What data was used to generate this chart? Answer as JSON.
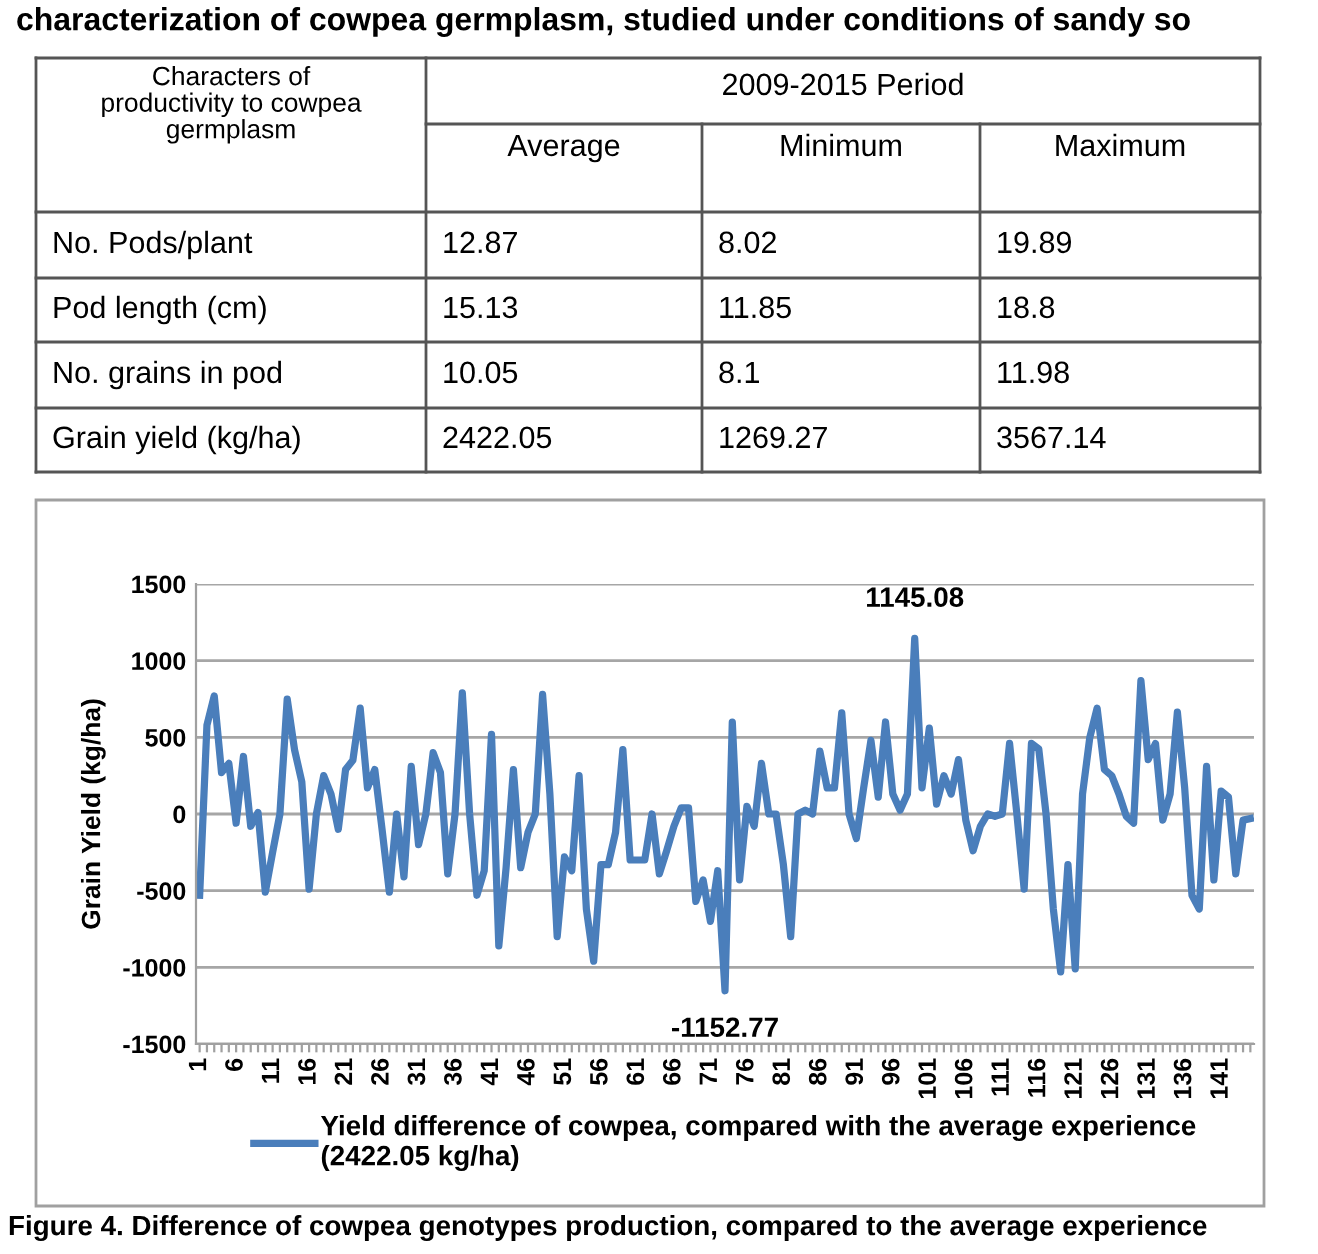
{
  "chart_data": [
    {
      "type": "other",
      "title": "characterization of cowpea germplasm, studied under conditions of sandy so",
      "annotations": [
        "Characters of\nproductivity to cowpea\ngermplasm",
        "2009-2015 Period",
        "Average",
        "Minimum",
        "Maximum",
        "No. Pods/plant",
        "12.87",
        "8.02",
        "19.89",
        "Pod length (cm)",
        "15.13",
        "11.85",
        "18.8",
        "No. grains in pod",
        "10.05",
        "8.1",
        "11.98",
        "Grain yield (kg/ha)",
        "2422.05",
        "1269.27",
        "3567.14"
      ]
    },
    {
      "type": "line",
      "ylabel": "Grain Yield (kg/ha)",
      "ylim": [
        -1500,
        1500
      ],
      "yticks": [
        -1500,
        -1000,
        -500,
        0,
        500,
        1000,
        1500
      ],
      "grid": "y",
      "legend": "bottom",
      "marker": "none",
      "line_style": "solid",
      "categories": [
        "1",
        null,
        null,
        null,
        null,
        "6",
        null,
        null,
        null,
        null,
        "11",
        null,
        null,
        null,
        null,
        "16",
        null,
        null,
        null,
        null,
        "21",
        null,
        null,
        null,
        null,
        "26",
        null,
        null,
        null,
        null,
        "31",
        null,
        null,
        null,
        null,
        "36",
        null,
        null,
        null,
        null,
        "41",
        null,
        null,
        null,
        null,
        "46",
        null,
        null,
        null,
        null,
        "51",
        null,
        null,
        null,
        null,
        "56",
        null,
        null,
        null,
        null,
        "61",
        null,
        null,
        null,
        null,
        "66",
        null,
        null,
        null,
        null,
        "71",
        null,
        null,
        null,
        null,
        "76",
        null,
        null,
        null,
        null,
        "81",
        null,
        null,
        null,
        null,
        "86",
        null,
        null,
        null,
        null,
        "91",
        null,
        null,
        null,
        null,
        "96",
        null,
        null,
        null,
        null,
        "101",
        null,
        null,
        null,
        null,
        "106",
        null,
        null,
        null,
        null,
        "111",
        null,
        null,
        null,
        null,
        "116",
        null,
        null,
        null,
        null,
        "121",
        null,
        null,
        null,
        null,
        "126",
        null,
        null,
        null,
        null,
        "131",
        null,
        null,
        null,
        null,
        "136",
        null,
        null,
        null,
        null,
        "141",
        null,
        null,
        null,
        null
      ],
      "series": [
        {
          "name": "Yield difference of cowpea, compared with the average experience\n(2422.05 kg/ha)",
          "color": "#4a7ebb",
          "values": [
            -530,
            580,
            770,
            270,
            330,
            -60,
            375,
            -80,
            10,
            -510,
            -250,
            0,
            750,
            420,
            210,
            -490,
            0,
            250,
            130,
            -100,
            290,
            350,
            690,
            170,
            290,
            -100,
            -510,
            0,
            -410,
            310,
            -200,
            0,
            400,
            270,
            -390,
            0,
            790,
            0,
            -530,
            -370,
            520,
            -860,
            -350,
            290,
            -350,
            -120,
            0,
            780,
            130,
            -800,
            -280,
            -370,
            250,
            -620,
            -960,
            -330,
            -330,
            -120,
            420,
            -300,
            -300,
            -300,
            0,
            -390,
            -240,
            -80,
            40,
            40,
            -570,
            -430,
            -700,
            -370,
            -1152.77,
            600,
            -430,
            50,
            -80,
            330,
            0,
            0,
            -330,
            -800,
            0,
            25,
            0,
            410,
            170,
            170,
            660,
            0,
            -160,
            170,
            480,
            110,
            600,
            130,
            25,
            130,
            1145.08,
            170,
            560,
            65,
            250,
            130,
            355,
            -40,
            -240,
            -80,
            0,
            -15,
            0,
            460,
            0,
            -490,
            460,
            425,
            0,
            -620,
            -1030,
            -330,
            -1010,
            130,
            500,
            690,
            290,
            250,
            130,
            -15,
            -60,
            870,
            355,
            460,
            -40,
            130,
            665,
            170,
            -530,
            -620,
            310,
            -430,
            150,
            110,
            -390,
            -40,
            -30
          ]
        }
      ],
      "annotations": [
        {
          "text": "1145.08",
          "y": 1145.08
        },
        {
          "text": "-1152.77",
          "y": -1152.77
        },
        "Figure 4. Difference of cowpea genotypes production, compared to the average experience"
      ]
    }
  ]
}
